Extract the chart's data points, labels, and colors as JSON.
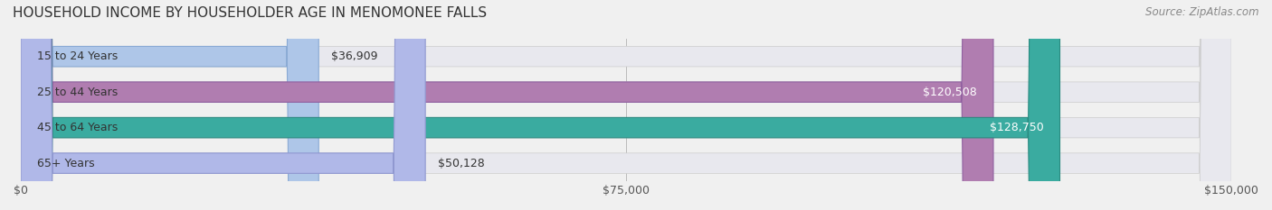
{
  "title": "HOUSEHOLD INCOME BY HOUSEHOLDER AGE IN MENOMONEE FALLS",
  "source": "Source: ZipAtlas.com",
  "categories": [
    "15 to 24 Years",
    "25 to 44 Years",
    "45 to 64 Years",
    "65+ Years"
  ],
  "values": [
    36909,
    120508,
    128750,
    50128
  ],
  "bar_colors": [
    "#aec6e8",
    "#b07db0",
    "#3aaba0",
    "#b0b8e8"
  ],
  "bar_edge_colors": [
    "#8aaad4",
    "#9060a0",
    "#2a8a80",
    "#9098d0"
  ],
  "label_colors": [
    "#555555",
    "#ffffff",
    "#ffffff",
    "#555555"
  ],
  "xlim": [
    0,
    150000
  ],
  "xticks": [
    0,
    75000,
    150000
  ],
  "xtick_labels": [
    "$0",
    "$75,000",
    "$150,000"
  ],
  "bar_height": 0.55,
  "background_color": "#f0f0f0",
  "bar_bg_color": "#e8e8ee",
  "title_fontsize": 11,
  "source_fontsize": 8.5,
  "label_fontsize": 9,
  "tick_fontsize": 9,
  "category_fontsize": 9
}
